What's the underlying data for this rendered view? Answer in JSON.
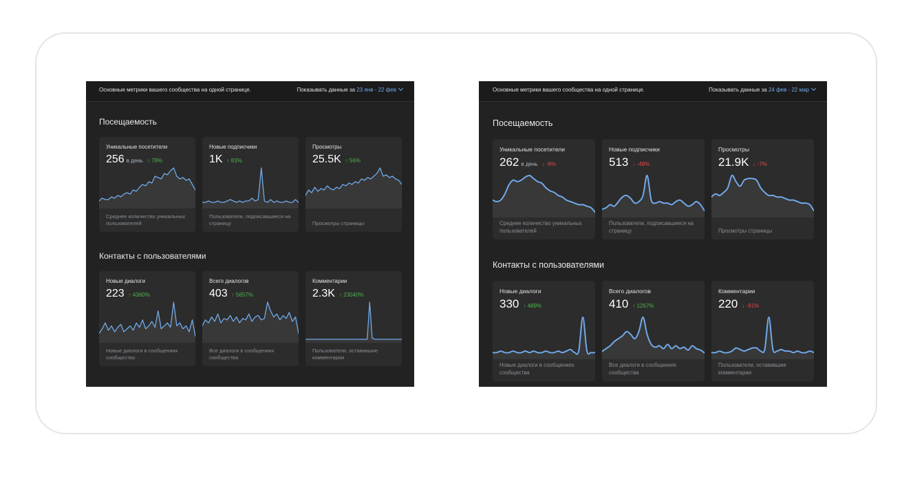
{
  "left": {
    "header": {
      "description": "Основные метрики вашего сообщества на одной странице.",
      "range_label": "Показывать данные за",
      "range_dates": "23 янв - 22 фев"
    },
    "section1": {
      "title": "Посещаемость"
    },
    "section2": {
      "title": "Контакты с пользователями"
    },
    "cards": [
      {
        "title": "Уникальные посетители",
        "value": "256",
        "unit": "в день",
        "change": "↑ 78%",
        "direction": "up",
        "desc": "Среднее количество уникальных пользователей",
        "series": [
          4,
          6,
          5,
          5,
          7,
          6,
          8,
          7,
          9,
          10,
          9,
          12,
          11,
          14,
          16,
          15,
          18,
          17,
          22,
          21,
          20,
          24,
          23,
          26,
          28,
          22,
          20,
          21,
          19,
          20,
          16,
          12
        ]
      },
      {
        "title": "Новые подписчики",
        "value": "1K",
        "change": "↑ 83%",
        "direction": "up",
        "desc": "Пользователи, подписавшиеся на страницу",
        "series": [
          3,
          3,
          4,
          3,
          3,
          4,
          3,
          3,
          4,
          5,
          4,
          3,
          4,
          3,
          4,
          4,
          6,
          4,
          5,
          28,
          4,
          3,
          5,
          3,
          4,
          3,
          3,
          4,
          3,
          3,
          5,
          3
        ]
      },
      {
        "title": "Просмотры",
        "value": "25.5K",
        "change": "↑ 56%",
        "direction": "up",
        "desc": "Просмотры страницы",
        "series": [
          8,
          12,
          10,
          14,
          11,
          13,
          12,
          15,
          13,
          12,
          14,
          13,
          16,
          15,
          17,
          16,
          18,
          17,
          20,
          19,
          21,
          20,
          22,
          24,
          28,
          22,
          23,
          21,
          22,
          20,
          19,
          16
        ]
      },
      {
        "title": "Новые диалоги",
        "value": "223",
        "change": "↑ 4360%",
        "direction": "up",
        "desc": "Новые диалоги в сообщениях сообщества",
        "series": [
          5,
          8,
          12,
          7,
          10,
          6,
          9,
          11,
          6,
          8,
          10,
          7,
          12,
          9,
          14,
          8,
          10,
          13,
          9,
          20,
          8,
          10,
          12,
          9,
          26,
          10,
          12,
          8,
          10,
          6,
          14,
          3
        ]
      },
      {
        "title": "Всего диалогов",
        "value": "403",
        "change": "↑ 5657%",
        "direction": "up",
        "desc": "Все диалоги в сообщениях сообщества",
        "series": [
          10,
          14,
          12,
          16,
          13,
          18,
          12,
          15,
          14,
          17,
          13,
          16,
          12,
          15,
          14,
          18,
          13,
          16,
          17,
          14,
          15,
          26,
          20,
          16,
          18,
          14,
          17,
          15,
          19,
          13,
          16,
          5
        ]
      },
      {
        "title": "Комментарии",
        "value": "2.3K",
        "change": "↑ 23040%",
        "direction": "up",
        "desc": "Пользователи, оставившие комментарии",
        "series": [
          1,
          1,
          1,
          1,
          1,
          1,
          1,
          1,
          1,
          1,
          1,
          1,
          1,
          1,
          1,
          1,
          1,
          1,
          1,
          1,
          1,
          1,
          1,
          1,
          1,
          1,
          28,
          2,
          1,
          1,
          1,
          1,
          1,
          1,
          1,
          1,
          1,
          1,
          1,
          1
        ]
      }
    ]
  },
  "right": {
    "header": {
      "description": "Основные метрики вашего сообщества на одной странице.",
      "range_label": "Показывать данные за",
      "range_dates": "24 фев - 22 мар"
    },
    "section1": {
      "title": "Посещаемость"
    },
    "section2": {
      "title": "Контакты с пользователями"
    },
    "cards": [
      {
        "title": "Уникальные посетители",
        "value": "262",
        "unit": "в день",
        "change": "↓ -6%",
        "direction": "down",
        "desc": "Среднее количество уникальных пользователей",
        "series": [
          10,
          9,
          10,
          14,
          20,
          23,
          22,
          23,
          25,
          26,
          24,
          22,
          21,
          18,
          16,
          15,
          13,
          12,
          10,
          9,
          8,
          7,
          7,
          6,
          5,
          2
        ]
      },
      {
        "title": "Новые подписчики",
        "value": "513",
        "change": "↓ -48%",
        "direction": "down",
        "desc": "Пользователи, подписавшиеся на страницу",
        "series": [
          4,
          5,
          7,
          6,
          9,
          12,
          13,
          11,
          8,
          9,
          13,
          26,
          10,
          8,
          9,
          8,
          8,
          7,
          9,
          10,
          8,
          6,
          7,
          9,
          7,
          3
        ]
      },
      {
        "title": "Просмотры",
        "value": "21.9K",
        "change": "↓ -7%",
        "direction": "down",
        "desc": "Просмотры страницы",
        "series": [
          12,
          14,
          13,
          15,
          18,
          26,
          22,
          19,
          23,
          24,
          24,
          23,
          18,
          15,
          13,
          13,
          12,
          12,
          11,
          10,
          10,
          9,
          8,
          8,
          7,
          3
        ]
      },
      {
        "title": "Новые диалоги",
        "value": "330",
        "change": "↑ 489%",
        "direction": "up",
        "desc": "Новые диалоги в сообщениях сообщества",
        "series": [
          3,
          3,
          4,
          3,
          3,
          4,
          3,
          3,
          4,
          3,
          4,
          3,
          3,
          4,
          3,
          3,
          4,
          3,
          4,
          5,
          3,
          4,
          26,
          4,
          3,
          3
        ]
      },
      {
        "title": "Всего диалогов",
        "value": "410",
        "change": "↑ 1267%",
        "direction": "up",
        "desc": "Все диалоги в сообщениях сообщества",
        "series": [
          4,
          6,
          8,
          11,
          13,
          15,
          18,
          16,
          13,
          18,
          28,
          16,
          9,
          7,
          8,
          6,
          9,
          6,
          8,
          6,
          7,
          5,
          8,
          6,
          5,
          3
        ]
      },
      {
        "title": "Комментарии",
        "value": "220",
        "change": "↓ -91%",
        "direction": "down",
        "desc": "Пользователи, оставившие комментарии",
        "series": [
          3,
          3,
          4,
          3,
          3,
          4,
          6,
          5,
          4,
          5,
          6,
          6,
          4,
          5,
          26,
          5,
          4,
          5,
          4,
          4,
          3,
          4,
          3,
          3,
          4,
          3
        ]
      }
    ]
  }
}
